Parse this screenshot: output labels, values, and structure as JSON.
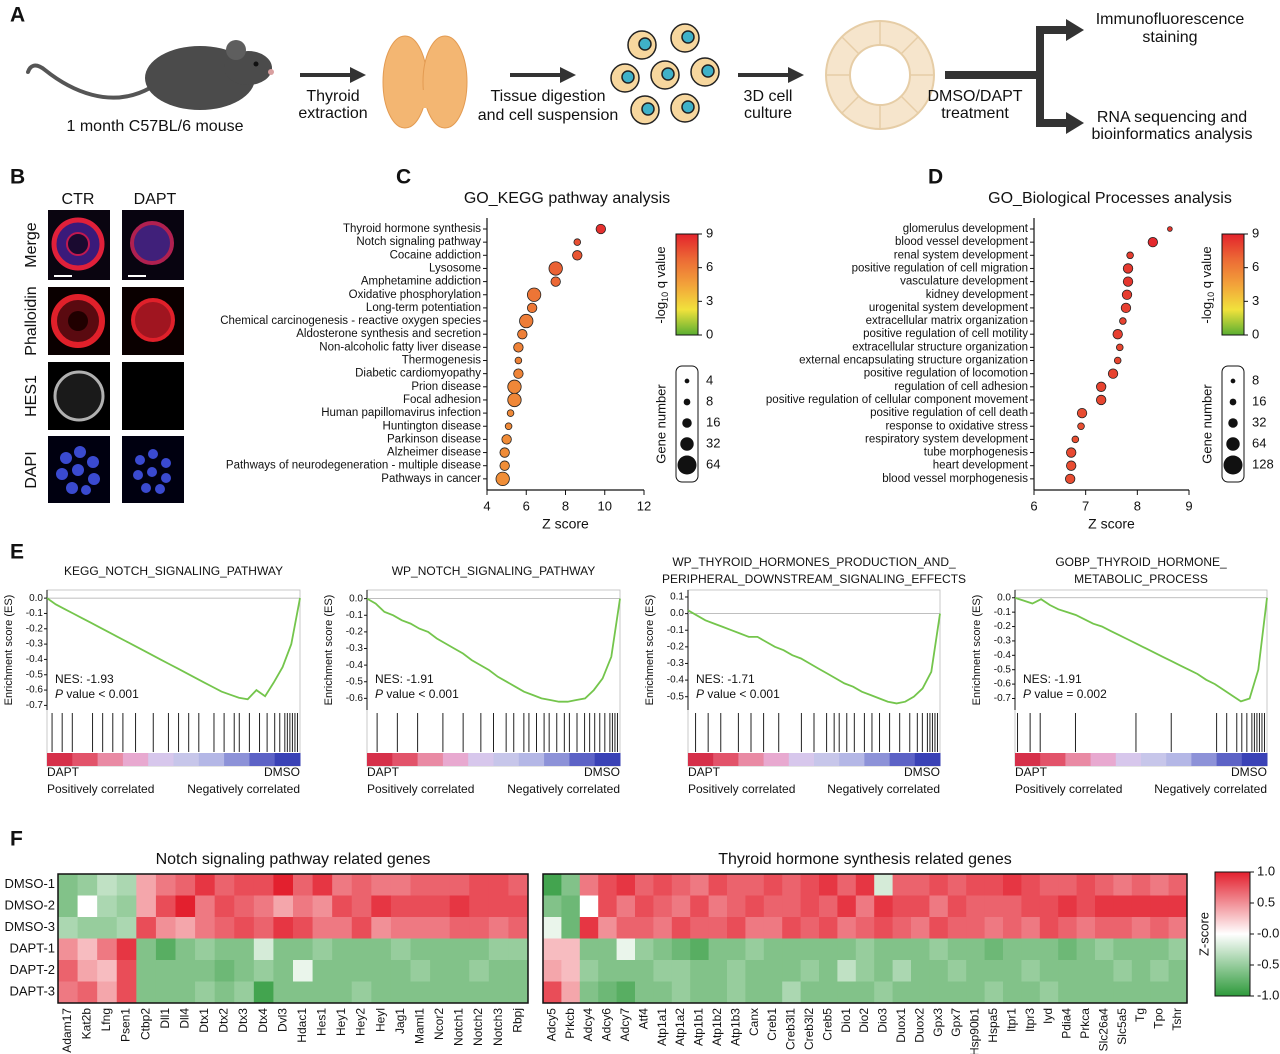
{
  "panel_labels": [
    "A",
    "B",
    "C",
    "D",
    "E",
    "F"
  ],
  "schematic": {
    "mouse": "1 month C57BL/6 mouse",
    "step1": [
      "Thyroid",
      "extraction"
    ],
    "step2": [
      "Tissue digestion",
      "and cell suspension"
    ],
    "step3": [
      "3D cell",
      "culture"
    ],
    "step4": [
      "DMSO/DAPT",
      "treatment"
    ],
    "out1": [
      "Immunofluorescence",
      "staining"
    ],
    "out2": [
      "RNA sequencing and",
      "bioinformatics analysis"
    ]
  },
  "microscopy": {
    "columns": [
      "CTR",
      "DAPT"
    ],
    "rows": [
      "Merge",
      "Phalloidin",
      "HES1",
      "DAPI"
    ]
  },
  "chart_data": [
    {
      "type": "dot",
      "title": "GO_KEGG pathway analysis",
      "xlabel": "Z score",
      "categories": [
        "Thyroid hormone synthesis",
        "Notch signaling pathway",
        "Cocaine addiction",
        "Lysosome",
        "Amphetamine addiction",
        "Oxidative phosphorylation",
        "Long-term potentiation",
        "Chemical carcinogenesis - reactive oxygen species",
        "Aldosterone synthesis and secretion",
        "Non-alcoholic fatty liver disease",
        "Thermogenesis",
        "Diabetic cardiomyopathy",
        "Prion disease",
        "Focal adhesion",
        "Human papillomavirus infection",
        "Huntington disease",
        "Parkinson disease",
        "Alzheimer disease",
        "Pathways of neurodegeneration - multiple disease",
        "Pathways in cancer"
      ],
      "values": [
        9.8,
        8.6,
        8.6,
        7.5,
        7.5,
        6.4,
        6.3,
        6.0,
        5.8,
        5.6,
        5.6,
        5.6,
        5.4,
        5.4,
        5.2,
        5.1,
        5.0,
        4.9,
        4.9,
        4.8
      ],
      "sizes": [
        16,
        8,
        16,
        32,
        16,
        32,
        16,
        32,
        16,
        16,
        8,
        16,
        32,
        32,
        8,
        8,
        16,
        16,
        16,
        32
      ],
      "q_values": [
        8.6,
        7.6,
        7.4,
        7.0,
        6.8,
        6.3,
        6.2,
        6.0,
        5.9,
        5.8,
        5.8,
        5.7,
        5.6,
        5.6,
        5.5,
        5.5,
        5.4,
        5.4,
        5.3,
        5.3
      ],
      "xlim": [
        4,
        12
      ],
      "xticks": [
        4,
        6,
        8,
        10,
        12
      ],
      "color_legend": {
        "label": {
          "prefix": "-log",
          "subscript": "10",
          "suffix": " q value"
        },
        "lim": [
          0,
          9
        ],
        "ticks": [
          9,
          6,
          3,
          0
        ],
        "colors": [
          "#5aae32",
          "#f1e23c",
          "#f2a23a",
          "#ec6a35",
          "#e3232c"
        ]
      },
      "size_legend": {
        "label": "Gene number",
        "values": [
          4,
          8,
          16,
          32,
          64
        ]
      }
    },
    {
      "type": "dot",
      "title": "GO_Biological Processes analysis",
      "xlabel": "Z score",
      "categories": [
        "glomerulus development",
        "blood vessel development",
        "renal system development",
        "positive regulation of cell migration",
        "vasculature development",
        "kidney development",
        "urogenital system development",
        "extracellular matrix organization",
        "positive regulation of cell motility",
        "extracellular structure organization",
        "external encapsulating structure organization",
        "positive regulation of locomotion",
        "regulation of cell adhesion",
        "positive regulation of cellular component movement",
        "positive regulation of cell death",
        "response to oxidative stress",
        "respiratory system development",
        "tube morphogenesis",
        "heart development",
        "blood vessel morphogenesis"
      ],
      "values": [
        8.63,
        8.3,
        7.86,
        7.82,
        7.82,
        7.8,
        7.78,
        7.72,
        7.62,
        7.66,
        7.62,
        7.53,
        7.3,
        7.3,
        6.93,
        6.91,
        6.8,
        6.72,
        6.72,
        6.7
      ],
      "sizes": [
        8,
        32,
        16,
        32,
        32,
        32,
        32,
        16,
        32,
        16,
        16,
        32,
        32,
        32,
        32,
        16,
        16,
        32,
        32,
        32
      ],
      "q_values": [
        8.4,
        8.8,
        8.2,
        8.3,
        8.4,
        8.2,
        8.1,
        8.0,
        8.1,
        7.9,
        7.9,
        8.0,
        8.0,
        7.9,
        7.7,
        7.6,
        7.6,
        7.8,
        7.7,
        7.7
      ],
      "xlim": [
        6,
        9
      ],
      "xticks": [
        6,
        7,
        8,
        9
      ],
      "color_legend": {
        "label": {
          "prefix": "-log",
          "subscript": "10",
          "suffix": " q value"
        },
        "lim": [
          0,
          9
        ],
        "ticks": [
          9,
          6,
          3,
          0
        ],
        "colors": [
          "#5aae32",
          "#f1e23c",
          "#f2a23a",
          "#ec6a35",
          "#e3232c"
        ]
      },
      "size_legend": {
        "label": "Gene number",
        "values": [
          8,
          16,
          32,
          64,
          128
        ]
      }
    },
    {
      "type": "gsea",
      "title": [
        "KEGG_NOTCH_SIGNALING_PATHWAY"
      ],
      "ylabel": "Enrichment score (ES)",
      "color": "#74c54c",
      "values": [
        0,
        -0.04,
        -0.07,
        -0.1,
        -0.13,
        -0.16,
        -0.19,
        -0.22,
        -0.25,
        -0.28,
        -0.31,
        -0.34,
        -0.37,
        -0.4,
        -0.43,
        -0.46,
        -0.49,
        -0.52,
        -0.55,
        -0.58,
        -0.61,
        -0.63,
        -0.65,
        -0.66,
        -0.6,
        -0.64,
        -0.55,
        -0.45,
        -0.3,
        0
      ],
      "hits": [
        0.02,
        0.06,
        0.1,
        0.18,
        0.22,
        0.26,
        0.3,
        0.35,
        0.42,
        0.48,
        0.52,
        0.56,
        0.6,
        0.66,
        0.7,
        0.74,
        0.76,
        0.8,
        0.84,
        0.87,
        0.9,
        0.92,
        0.94,
        0.95,
        0.96,
        0.97,
        0.98,
        0.99
      ],
      "ylim": [
        -0.73,
        0.04
      ],
      "yticks": [
        {
          "value": 0,
          "label": "0.0"
        },
        -0.1,
        -0.2,
        -0.3,
        -0.4,
        -0.5,
        -0.6,
        -0.7
      ],
      "nes": "NES: -1.93",
      "p_symbol": "P",
      "p_text": " value < 0.001",
      "ends": [
        "DAPT",
        "DMSO"
      ],
      "notes": [
        "Positively correlated",
        "Negatively correlated"
      ]
    },
    {
      "type": "gsea",
      "title": [
        "WP_NOTCH_SIGNALING_PATHWAY"
      ],
      "ylabel": "Enrichment score (ES)",
      "color": "#74c54c",
      "values": [
        0,
        -0.03,
        -0.08,
        -0.1,
        -0.13,
        -0.15,
        -0.18,
        -0.2,
        -0.24,
        -0.27,
        -0.3,
        -0.33,
        -0.37,
        -0.4,
        -0.43,
        -0.47,
        -0.5,
        -0.53,
        -0.56,
        -0.58,
        -0.6,
        -0.61,
        -0.62,
        -0.62,
        -0.61,
        -0.6,
        -0.55,
        -0.48,
        -0.35,
        0
      ],
      "hits": [
        0.04,
        0.12,
        0.2,
        0.3,
        0.38,
        0.45,
        0.5,
        0.55,
        0.58,
        0.62,
        0.64,
        0.67,
        0.7,
        0.72,
        0.75,
        0.78,
        0.8,
        0.83,
        0.86,
        0.88,
        0.9,
        0.92,
        0.94,
        0.96,
        0.97,
        0.98,
        0.99
      ],
      "ylim": [
        -0.67,
        0.04
      ],
      "yticks": [
        {
          "value": 0,
          "label": "0.0"
        },
        -0.1,
        -0.2,
        -0.3,
        -0.4,
        -0.5,
        -0.6
      ],
      "nes": "NES: -1.91",
      "p_symbol": "P",
      "p_text": " value < 0.001",
      "ends": [
        "DAPT",
        "DMSO"
      ],
      "notes": [
        "Positively correlated",
        "Negatively correlated"
      ]
    },
    {
      "type": "gsea",
      "title": [
        "WP_THYROID_HORMONES_PRODUCTION_AND_",
        "PERIPHERAL_DOWNSTREAM_SIGNALING_EFFECTS"
      ],
      "ylabel": "Enrichment score (ES)",
      "color": "#74c54c",
      "values": [
        0.02,
        -0.01,
        -0.04,
        -0.06,
        -0.08,
        -0.1,
        -0.12,
        -0.14,
        -0.14,
        -0.17,
        -0.2,
        -0.22,
        -0.25,
        -0.27,
        -0.3,
        -0.33,
        -0.36,
        -0.39,
        -0.42,
        -0.44,
        -0.47,
        -0.49,
        -0.51,
        -0.53,
        -0.54,
        -0.53,
        -0.5,
        -0.45,
        -0.35,
        0
      ],
      "hits": [
        0.03,
        0.08,
        0.13,
        0.2,
        0.25,
        0.3,
        0.36,
        0.45,
        0.5,
        0.55,
        0.58,
        0.6,
        0.63,
        0.66,
        0.7,
        0.73,
        0.76,
        0.8,
        0.84,
        0.88,
        0.91,
        0.93,
        0.95,
        0.96,
        0.97,
        0.98,
        0.99
      ],
      "ylim": [
        -0.58,
        0.13
      ],
      "yticks": [
        0.1,
        {
          "value": 0,
          "label": "0.0"
        },
        -0.1,
        -0.2,
        -0.3,
        -0.4,
        -0.5
      ],
      "nes": "NES: -1.71",
      "p_symbol": "P",
      "p_text": " value < 0.001",
      "ends": [
        "DAPT",
        "DMSO"
      ],
      "notes": [
        "Positively correlated",
        "Negatively correlated"
      ]
    },
    {
      "type": "gsea",
      "title": [
        "GOBP_THYROID_HORMONE_",
        "METABOLIC_PROCESS"
      ],
      "ylabel": "Enrichment score (ES)",
      "color": "#74c54c",
      "values": [
        0,
        -0.02,
        -0.04,
        -0.01,
        -0.05,
        -0.08,
        -0.1,
        -0.12,
        -0.15,
        -0.18,
        -0.2,
        -0.23,
        -0.26,
        -0.29,
        -0.32,
        -0.35,
        -0.38,
        -0.41,
        -0.44,
        -0.47,
        -0.5,
        -0.53,
        -0.57,
        -0.6,
        -0.64,
        -0.68,
        -0.72,
        -0.7,
        -0.5,
        0
      ],
      "hits": [
        0.01,
        0.06,
        0.1,
        0.24,
        0.48,
        0.62,
        0.8,
        0.84,
        0.88,
        0.9,
        0.92,
        0.94,
        0.95,
        0.96,
        0.97,
        0.98,
        0.99
      ],
      "ylim": [
        -0.78,
        0.04
      ],
      "yticks": [
        {
          "value": 0,
          "label": "0.0"
        },
        -0.1,
        -0.2,
        -0.3,
        -0.4,
        -0.5,
        -0.6,
        -0.7
      ],
      "nes": "NES: -1.91",
      "p_symbol": "P",
      "p_text": " value = 0.002",
      "ends": [
        "DAPT",
        "DMSO"
      ],
      "notes": [
        "Positively correlated",
        "Negatively correlated"
      ]
    },
    {
      "type": "heatmap",
      "title": "Notch signaling pathway related genes",
      "rows": [
        "DMSO-1",
        "DMSO-2",
        "DMSO-3",
        "DAPT-1",
        "DAPT-2",
        "DAPT-3"
      ],
      "columns": [
        "Adam17",
        "Kat2b",
        "Lfng",
        "Psen1",
        "Ctbp2",
        "Dll1",
        "Dll4",
        "Dtx1",
        "Dtx2",
        "Dtx3",
        "Dtx4",
        "Dvl3",
        "Hdac1",
        "Hes1",
        "Hey1",
        "Hey2",
        "Heyl",
        "Jag1",
        "Maml1",
        "Ncor2",
        "Notch1",
        "Notch2",
        "Notch3",
        "Rbpj"
      ],
      "values": [
        [
          -0.6,
          -0.5,
          -0.3,
          -0.4,
          0.4,
          0.6,
          0.7,
          0.9,
          0.7,
          0.8,
          0.8,
          1.0,
          0.7,
          0.9,
          0.6,
          0.7,
          0.6,
          0.6,
          0.7,
          0.7,
          0.7,
          0.8,
          0.8,
          0.7
        ],
        [
          -0.6,
          0.0,
          -0.4,
          -0.5,
          0.4,
          0.8,
          1.0,
          0.6,
          0.8,
          0.7,
          0.6,
          0.4,
          0.6,
          0.5,
          0.8,
          0.7,
          0.9,
          0.8,
          0.8,
          0.8,
          0.9,
          0.8,
          0.8,
          0.8
        ],
        [
          -0.4,
          -0.5,
          -0.5,
          -0.4,
          0.8,
          0.5,
          0.4,
          0.6,
          0.7,
          0.8,
          0.7,
          0.9,
          0.8,
          0.6,
          0.6,
          0.8,
          0.5,
          0.6,
          0.6,
          0.6,
          0.7,
          0.7,
          0.6,
          0.7
        ],
        [
          0.5,
          0.3,
          0.6,
          0.9,
          -0.6,
          -0.8,
          -0.6,
          -0.5,
          -0.6,
          -0.6,
          -0.2,
          -0.6,
          -0.6,
          -0.5,
          -0.6,
          -0.6,
          -0.6,
          -0.5,
          -0.6,
          -0.6,
          -0.6,
          -0.6,
          -0.5,
          -0.5
        ],
        [
          0.7,
          0.4,
          0.3,
          0.8,
          -0.6,
          -0.6,
          -0.6,
          -0.6,
          -0.7,
          -0.6,
          -0.5,
          -0.6,
          -0.1,
          -0.6,
          -0.6,
          -0.6,
          -0.6,
          -0.6,
          -0.5,
          -0.6,
          -0.6,
          -0.5,
          -0.6,
          -0.6
        ],
        [
          0.6,
          0.7,
          0.4,
          0.8,
          -0.6,
          -0.6,
          -0.6,
          -0.5,
          -0.6,
          -0.5,
          -0.9,
          -0.6,
          -0.6,
          -0.6,
          -0.6,
          -0.5,
          -0.6,
          -0.6,
          -0.6,
          -0.6,
          -0.6,
          -0.6,
          -0.6,
          -0.6
        ]
      ],
      "zlim": [
        -1,
        1
      ],
      "colors": [
        "#2e9a3b",
        "#ffffff",
        "#e3202e"
      ]
    },
    {
      "type": "heatmap",
      "title": "Thyroid hormone synthesis related genes",
      "columns": [
        "Adcy5",
        "Prkcb",
        "Adcy4",
        "Adcy6",
        "Adcy7",
        "Atf4",
        "Atp1a1",
        "Atp1a2",
        "Atp1b1",
        "Atp1b2",
        "Atp1b3",
        "Canx",
        "Creb1",
        "Creb3l1",
        "Creb3l2",
        "Creb5",
        "Dio1",
        "Dio2",
        "Dio3",
        "Duox1",
        "Duox2",
        "Gpx3",
        "Gpx7",
        "Hsp90b1",
        "Hspa5",
        "Itpr1",
        "Itpr3",
        "Iyd",
        "Pdia4",
        "Prkca",
        "Slc26a4",
        "Slc5a5",
        "Tg",
        "Tpo",
        "Tshr"
      ],
      "values": [
        [
          -0.9,
          -0.6,
          0.6,
          0.8,
          0.9,
          0.7,
          0.8,
          0.7,
          0.6,
          0.8,
          0.7,
          0.7,
          0.8,
          0.7,
          0.8,
          0.9,
          0.7,
          0.9,
          -0.2,
          0.7,
          0.7,
          0.8,
          0.7,
          0.8,
          0.8,
          0.9,
          0.8,
          0.7,
          0.7,
          0.8,
          0.7,
          0.6,
          0.7,
          0.6,
          0.7
        ],
        [
          -0.6,
          -0.7,
          0.0,
          0.8,
          0.6,
          0.8,
          0.7,
          0.6,
          0.8,
          0.6,
          0.7,
          0.8,
          0.7,
          0.7,
          0.8,
          0.7,
          0.9,
          0.6,
          0.9,
          0.8,
          0.8,
          0.6,
          0.8,
          0.7,
          0.7,
          0.7,
          0.8,
          0.8,
          0.9,
          0.8,
          0.9,
          0.9,
          0.9,
          0.9,
          0.9
        ],
        [
          -0.1,
          -0.7,
          0.9,
          0.5,
          0.7,
          0.7,
          0.6,
          0.8,
          0.7,
          0.7,
          0.8,
          0.6,
          0.6,
          0.8,
          0.7,
          0.8,
          0.6,
          0.7,
          0.8,
          0.7,
          0.6,
          0.8,
          0.7,
          0.7,
          0.6,
          0.7,
          0.6,
          0.8,
          0.7,
          0.6,
          0.7,
          0.7,
          0.6,
          0.7,
          0.6
        ],
        [
          0.3,
          0.3,
          -0.6,
          -0.6,
          -0.1,
          -0.5,
          -0.6,
          -0.7,
          -0.8,
          -0.6,
          -0.6,
          -0.5,
          -0.6,
          -0.6,
          -0.6,
          -0.6,
          -0.6,
          -0.5,
          -0.6,
          -0.6,
          -0.6,
          -0.5,
          -0.6,
          -0.6,
          -0.7,
          -0.6,
          -0.6,
          -0.6,
          -0.7,
          -0.6,
          -0.5,
          -0.6,
          -0.6,
          -0.6,
          -0.5
        ],
        [
          0.4,
          0.3,
          -0.5,
          -0.6,
          -0.6,
          -0.6,
          -0.5,
          -0.5,
          -0.6,
          -0.6,
          -0.5,
          -0.6,
          -0.6,
          -0.6,
          -0.5,
          -0.6,
          -0.3,
          -0.5,
          -0.6,
          -0.4,
          -0.6,
          -0.6,
          -0.5,
          -0.6,
          -0.6,
          -0.6,
          -0.5,
          -0.6,
          -0.6,
          -0.6,
          -0.6,
          -0.5,
          -0.6,
          -0.5,
          -0.6
        ],
        [
          0.8,
          0.4,
          -0.6,
          -0.7,
          -0.8,
          -0.6,
          -0.6,
          -0.5,
          -0.6,
          -0.6,
          -0.5,
          -0.6,
          -0.6,
          -0.4,
          -0.6,
          -0.6,
          -0.6,
          -0.6,
          -0.5,
          -0.6,
          -0.6,
          -0.6,
          -0.6,
          -0.6,
          -0.5,
          -0.6,
          -0.6,
          -0.5,
          -0.6,
          -0.6,
          -0.6,
          -0.6,
          -0.6,
          -0.6,
          -0.6
        ]
      ],
      "zlim": [
        -1,
        1
      ],
      "colors": [
        "#2e9a3b",
        "#ffffff",
        "#e3202e"
      ],
      "colorbar": {
        "label": "Z-score",
        "ticks": [
          {
            "value": 1,
            "label": "1.0"
          },
          0.5,
          {
            "value": 0,
            "label": "-0.0"
          },
          -0.5,
          {
            "value": -1,
            "label": "-1.0"
          }
        ]
      }
    }
  ]
}
